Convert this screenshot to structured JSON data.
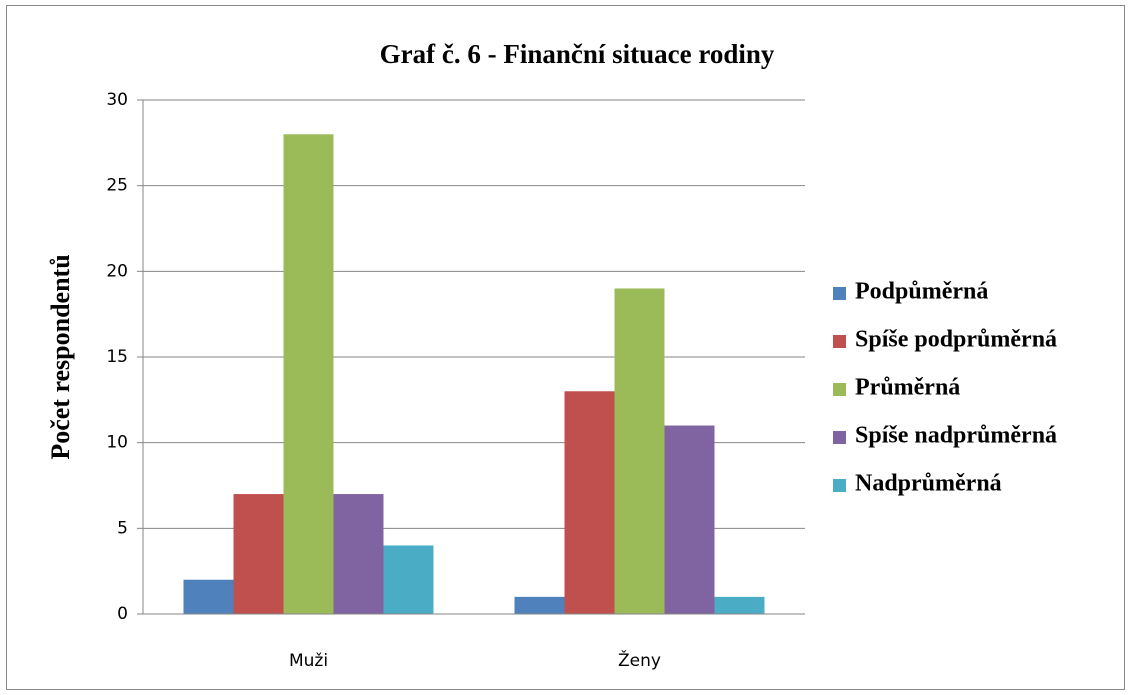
{
  "chart_data": {
    "type": "bar",
    "title": "Graf č. 6 - Finanční situace rodiny",
    "y_label": "Počet respondentů",
    "categories": [
      "Muži",
      "Ženy"
    ],
    "series": [
      {
        "name": "Podpůměrná",
        "color": "#4f81bd",
        "values": [
          2,
          1
        ]
      },
      {
        "name": "Spíše podprůměrná",
        "color": "#c0504d",
        "values": [
          7,
          13
        ]
      },
      {
        "name": "Průměrná",
        "color": "#9bbb59",
        "values": [
          28,
          19
        ]
      },
      {
        "name": "Spíše nadprůměrná",
        "color": "#8064a2",
        "values": [
          7,
          11
        ]
      },
      {
        "name": "Nadprůměrná",
        "color": "#4bacc6",
        "values": [
          4,
          1
        ]
      }
    ],
    "ylim": [
      0,
      30
    ],
    "yticks": [
      0,
      5,
      10,
      15,
      20,
      25,
      30
    ],
    "grid": true,
    "legend": "right"
  }
}
